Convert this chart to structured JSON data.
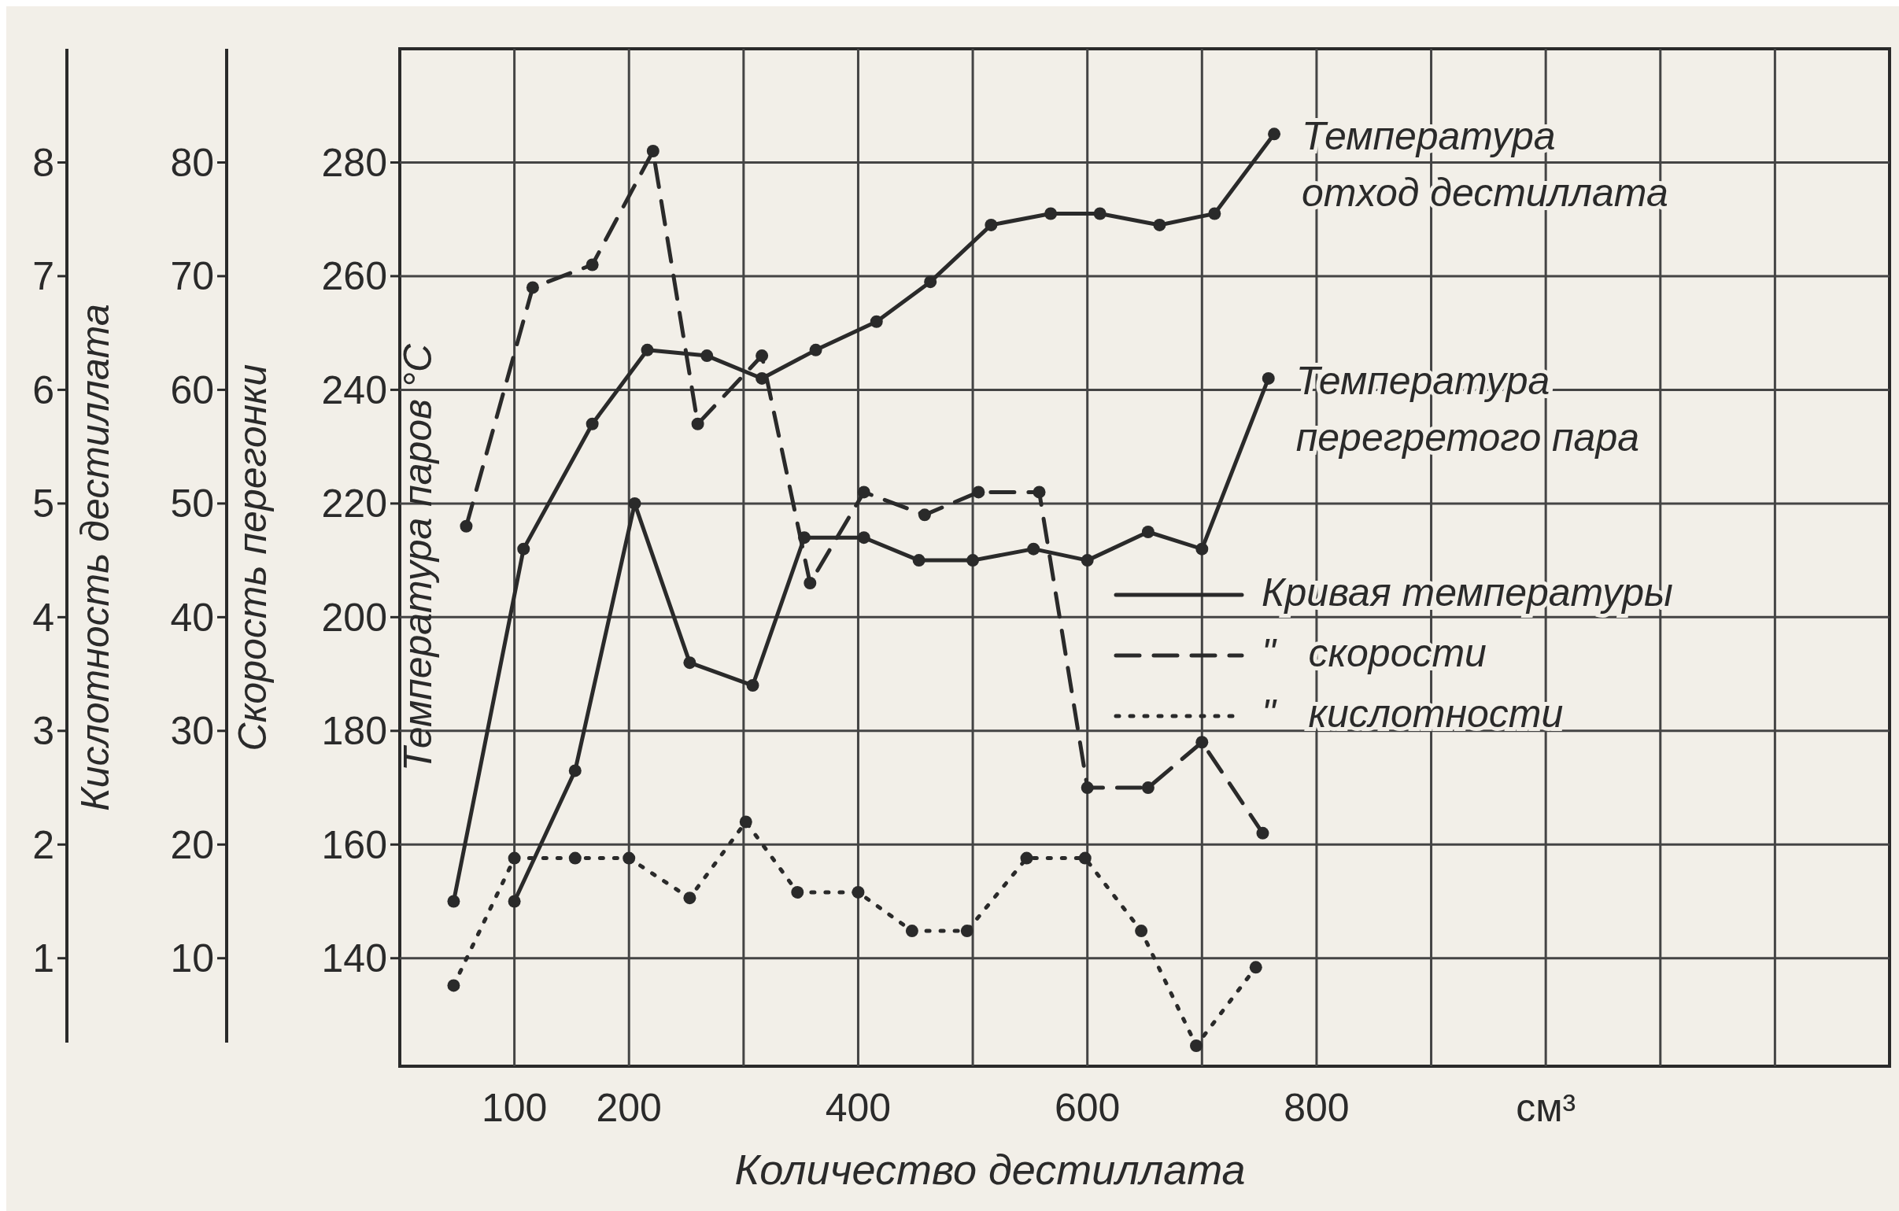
{
  "chart_data": {
    "type": "line",
    "xlabel": "Количество дестиллата",
    "ylabel": "Температура паров °С",
    "y2label": "Скорость перегонки",
    "y3label": "Кислотность дестиллата",
    "xlim": [
      0,
      1300
    ],
    "xticks": [
      100,
      200,
      {
        "value": 300,
        "label": null
      },
      400,
      {
        "value": 500,
        "label": null
      },
      600,
      {
        "value": 700,
        "label": null
      },
      800,
      {
        "value": 900,
        "label": null
      },
      {
        "value": 1000,
        "label": "см³"
      },
      {
        "value": 1100,
        "label": null
      },
      {
        "value": 1200,
        "label": null
      }
    ],
    "ylim": [
      121,
      300
    ],
    "yticks": [
      140,
      160,
      180,
      200,
      220,
      240,
      260,
      280
    ],
    "y2lim": [
      0.5,
      90
    ],
    "y2ticks": [
      10,
      20,
      30,
      40,
      50,
      60,
      70,
      80
    ],
    "y3lim": [
      0.05,
      9
    ],
    "y3ticks": [
      1,
      2,
      3,
      4,
      5,
      6,
      7,
      8
    ],
    "grid": true,
    "marker": "circle",
    "series": [
      {
        "name": "Температура отход дестиллата",
        "color": "#2a2a2a",
        "line_style": "solid",
        "x": [
          47,
          108,
          168,
          216,
          268,
          316,
          363,
          416,
          463,
          516,
          568,
          611,
          663,
          711,
          763
        ],
        "values": [
          150,
          212,
          234,
          247,
          246,
          242,
          247,
          252,
          259,
          269,
          271,
          271,
          269,
          271,
          285
        ]
      },
      {
        "name": "Температура перегретого пара",
        "color": "#2a2a2a",
        "line_style": "solid",
        "x": [
          100,
          153,
          205,
          253,
          308,
          353,
          405,
          453,
          500,
          553,
          600,
          653,
          700,
          758
        ],
        "values": [
          150,
          173,
          220,
          192,
          188,
          214,
          214,
          210,
          210,
          212,
          210,
          215,
          212,
          242
        ]
      },
      {
        "color": "#2a2a2a",
        "line_style": "dashed",
        "axis": "y2",
        "x": [
          58,
          116,
          168,
          221,
          260,
          316,
          358,
          405,
          458,
          505,
          558,
          600,
          653,
          700,
          753
        ],
        "values": [
          48,
          69,
          71,
          81,
          57,
          63,
          43,
          51,
          49,
          51,
          51,
          25,
          25,
          29,
          21
        ]
      },
      {
        "color": "#2a2a2a",
        "line_style": "dotted",
        "axis": "y3",
        "x": [
          47,
          100,
          153,
          200,
          253,
          302,
          347,
          400,
          447,
          495,
          547,
          598,
          647,
          695,
          747
        ],
        "values": [
          0.76,
          1.88,
          1.88,
          1.88,
          1.53,
          2.2,
          1.58,
          1.58,
          1.24,
          1.24,
          1.88,
          1.88,
          1.24,
          0.23,
          0.92
        ]
      }
    ],
    "annotations": [
      "Кривая температуры",
      "\"   скорости",
      "\"   кислотности"
    ]
  }
}
